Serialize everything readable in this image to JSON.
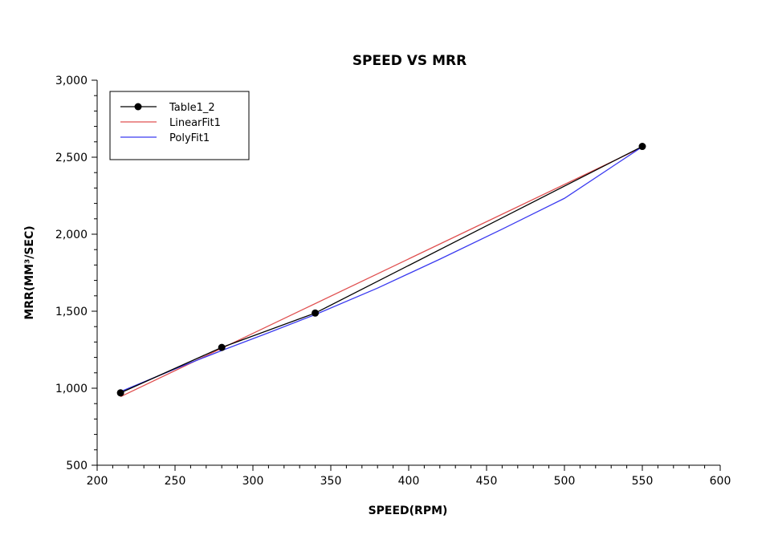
{
  "chart_data": {
    "type": "line",
    "title": "SPEED VS MRR",
    "xlabel": "SPEED(RPM)",
    "ylabel": "MRR(MM³/SEC)",
    "xlim": [
      200,
      600
    ],
    "ylim": [
      500,
      3000
    ],
    "xticks": [
      "200",
      "250",
      "300",
      "350",
      "400",
      "450",
      "500",
      "550",
      "600"
    ],
    "yticks": [
      "500",
      "1,000",
      "1,500",
      "2,000",
      "2,500",
      "3,000"
    ],
    "grid": false,
    "legend_position": "top-left",
    "series": [
      {
        "name": "Table1_2",
        "style": "line-with-markers",
        "color": "#000000",
        "x": [
          215,
          280,
          340,
          550
        ],
        "y": [
          970,
          1265,
          1488,
          2570
        ]
      },
      {
        "name": "LinearFit1",
        "style": "line",
        "color": "#e05050",
        "x": [
          215,
          550
        ],
        "y": [
          945,
          2565
        ]
      },
      {
        "name": "PolyFit1",
        "style": "line",
        "color": "#3a3af0",
        "x": [
          215,
          250,
          280,
          310,
          340,
          380,
          420,
          460,
          500,
          550
        ],
        "y": [
          978,
          1125,
          1245,
          1360,
          1478,
          1650,
          1838,
          2033,
          2233,
          2568
        ]
      }
    ]
  }
}
